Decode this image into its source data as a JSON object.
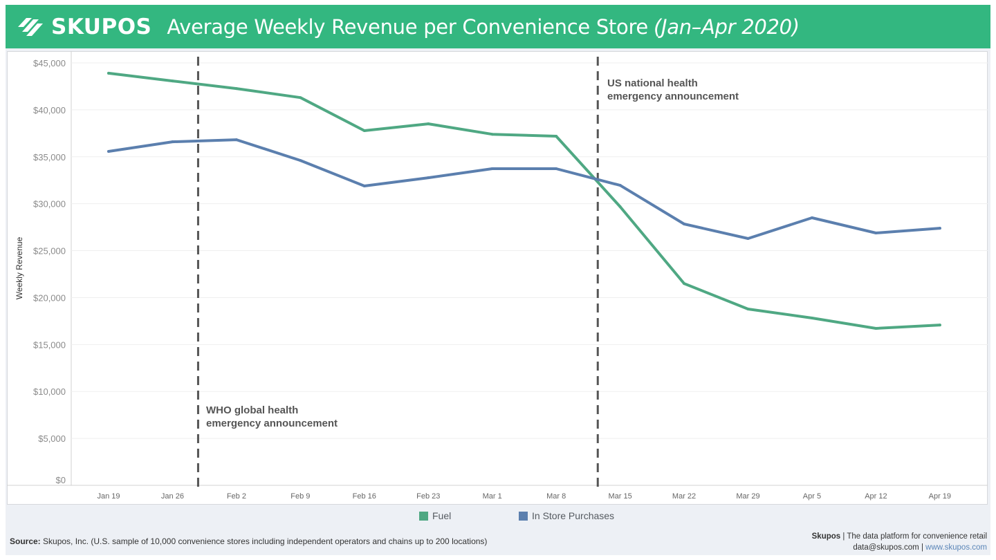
{
  "header": {
    "brand": "SKUPOS",
    "title": "Average Weekly Revenue per Convenience Store",
    "subtitle": "(Jan–Apr 2020)",
    "brand_color": "#33b780"
  },
  "annotations": [
    {
      "lines": [
        "WHO global health",
        "emergency announcement"
      ],
      "x_between": [
        "Jan 26",
        "Feb 2"
      ]
    },
    {
      "lines": [
        "US national health",
        "emergency announcement"
      ],
      "x_between": [
        "Mar 8",
        "Mar 15"
      ]
    }
  ],
  "legend": [
    {
      "label": "Fuel",
      "color": "#4fa883"
    },
    {
      "label": "In Store Purchases",
      "color": "#5b7fae"
    }
  ],
  "footer": {
    "source_label": "Source:",
    "source_text": " Skupos, Inc. (U.S. sample of 10,000 convenience stores including independent operators and chains up to 200 locations)",
    "company": "Skupos",
    "tagline": " | The data platform for convenience retail",
    "email": "data@skupos.com",
    "separator": " | ",
    "website": "www.skupos.com"
  },
  "chart_data": {
    "type": "line",
    "title": "Average Weekly Revenue per Convenience Store (Jan–Apr 2020)",
    "xlabel": "",
    "ylabel": "Weekly Revenue",
    "ylim": [
      0,
      45000
    ],
    "yticks": [
      0,
      5000,
      10000,
      15000,
      20000,
      25000,
      30000,
      35000,
      40000,
      45000
    ],
    "ytick_labels": [
      "$0",
      "$5,000",
      "$10,000",
      "$15,000",
      "$20,000",
      "$25,000",
      "$30,000",
      "$35,000",
      "$40,000",
      "$45,000"
    ],
    "grid": true,
    "legend_position": "bottom",
    "categories": [
      "Jan 19",
      "Jan 26",
      "Feb 2",
      "Feb 9",
      "Feb 16",
      "Feb 23",
      "Mar 1",
      "Mar 8",
      "Mar 15",
      "Mar 22",
      "Mar 29",
      "Apr 5",
      "Apr 12",
      "Apr 19"
    ],
    "series": [
      {
        "name": "Fuel",
        "color": "#4fa883",
        "values": [
          43900,
          43080,
          42270,
          41300,
          37780,
          38510,
          37400,
          37190,
          29680,
          21500,
          18780,
          17820,
          16720,
          17080
        ]
      },
      {
        "name": "In Store Purchases",
        "color": "#5b7fae",
        "values": [
          35570,
          36600,
          36820,
          34610,
          31890,
          32770,
          33730,
          33730,
          31960,
          27840,
          26290,
          28500,
          26880,
          27390
        ]
      }
    ],
    "reference_lines": [
      {
        "label": "WHO global health emergency announcement",
        "position_index": 1.4
      },
      {
        "label": "US national health emergency announcement",
        "position_index": 7.65
      }
    ]
  }
}
